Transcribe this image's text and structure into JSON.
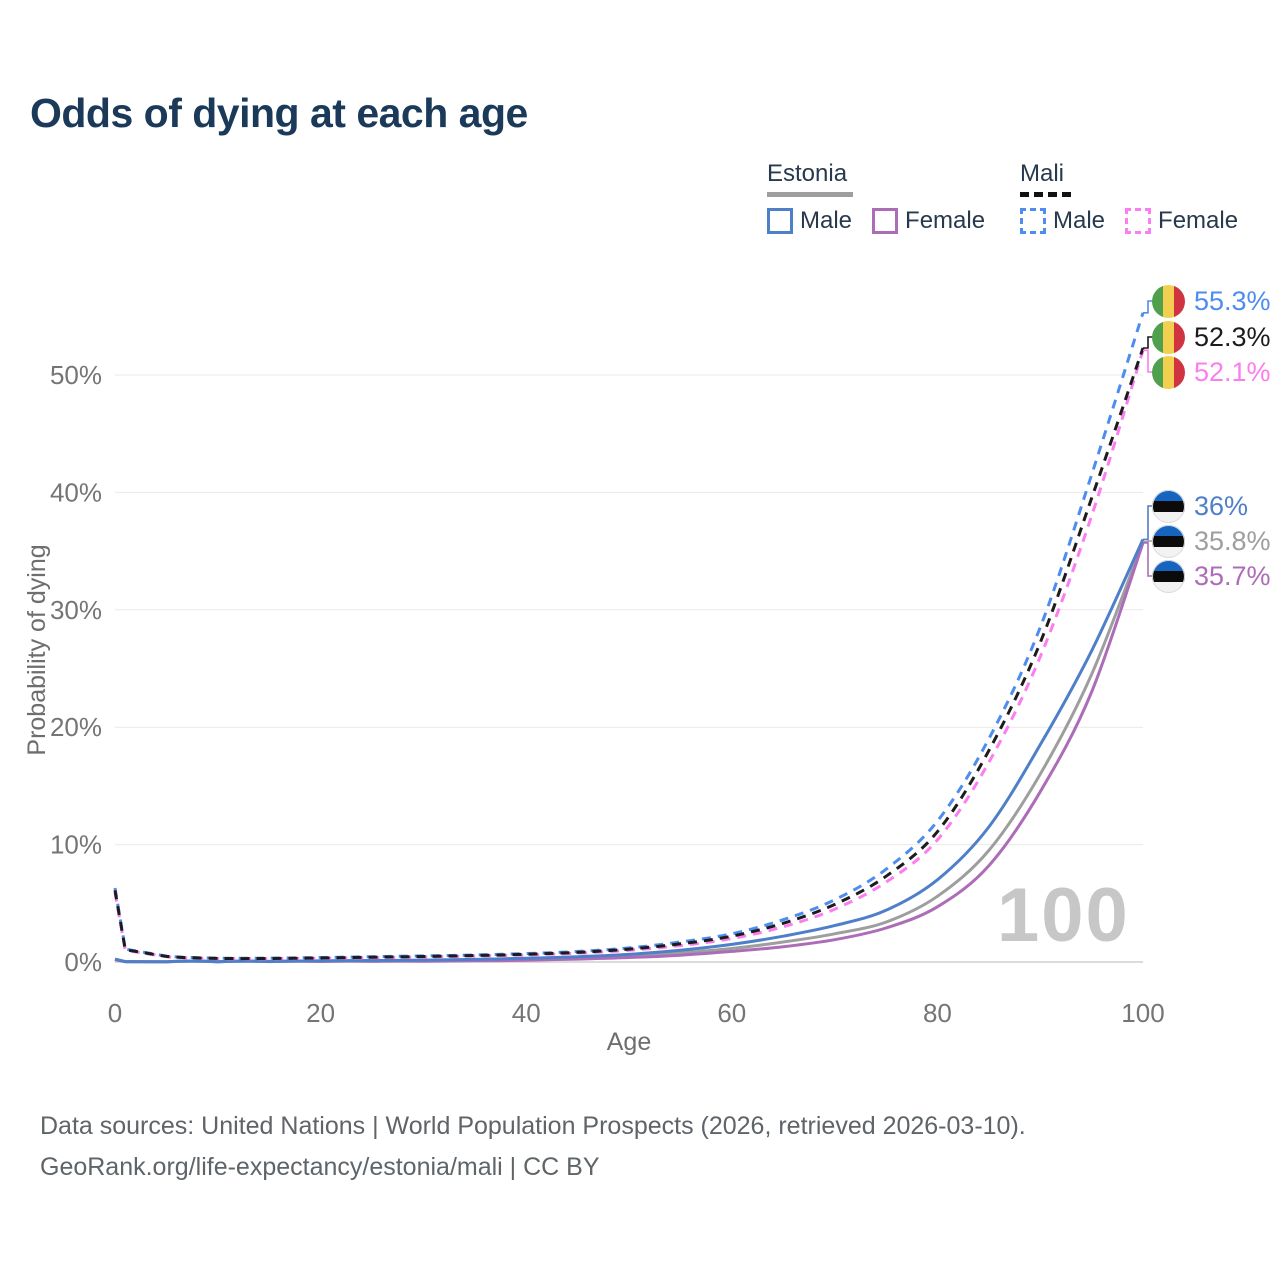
{
  "title": "Odds of dying at each age",
  "legend": {
    "groups": [
      {
        "label": "Estonia",
        "style": "solid",
        "items": [
          {
            "label": "Male"
          },
          {
            "label": "Female"
          }
        ]
      },
      {
        "label": "Mali",
        "style": "dashed",
        "items": [
          {
            "label": "Male"
          },
          {
            "label": "Female"
          }
        ]
      }
    ]
  },
  "watermark": "100",
  "footer": {
    "line1": "Data sources: United Nations | World Population Prospects (2026, retrieved 2026-03-10).",
    "line2": "GeoRank.org/life-expectancy/estonia/mali | CC BY"
  },
  "chart_data": {
    "type": "line",
    "title": "Odds of dying at each age",
    "xlabel": "Age",
    "ylabel": "Probability of dying",
    "x_ticks": [
      0,
      20,
      40,
      60,
      80,
      100
    ],
    "y_ticks": [
      "0%",
      "10%",
      "20%",
      "30%",
      "40%",
      "50%"
    ],
    "xlim": [
      0,
      100
    ],
    "ylim_percent": [
      0,
      57
    ],
    "grid": "horizontal",
    "legend_position": "top-right",
    "ages": [
      0,
      1,
      5,
      10,
      15,
      20,
      25,
      30,
      35,
      40,
      45,
      50,
      55,
      60,
      65,
      70,
      75,
      80,
      85,
      90,
      95,
      100
    ],
    "series": [
      {
        "name": "Mali Male",
        "country": "Mali",
        "sex": "Male",
        "color": "#4e8cf0",
        "dashed": true,
        "end_label": "55.3%",
        "flag": "mali-flag",
        "values": [
          6.3,
          1.1,
          0.5,
          0.33,
          0.33,
          0.38,
          0.45,
          0.52,
          0.6,
          0.72,
          0.9,
          1.2,
          1.7,
          2.4,
          3.6,
          5.3,
          7.9,
          12.0,
          19.0,
          28.5,
          41.5,
          55.3
        ]
      },
      {
        "name": "Mali Both sexes",
        "country": "Mali",
        "sex": "Both",
        "color": "#1c1c1c",
        "dashed": true,
        "end_label": "52.3%",
        "flag": "mali-flag",
        "values": [
          6.1,
          1.05,
          0.48,
          0.31,
          0.3,
          0.34,
          0.41,
          0.47,
          0.55,
          0.66,
          0.82,
          1.1,
          1.55,
          2.2,
          3.3,
          4.9,
          7.3,
          11.1,
          18.0,
          27.2,
          39.5,
          52.3
        ]
      },
      {
        "name": "Mali Female",
        "country": "Mali",
        "sex": "Female",
        "color": "#fb7df0",
        "dashed": true,
        "end_label": "52.1%",
        "flag": "mali-flag",
        "values": [
          5.9,
          1.0,
          0.45,
          0.29,
          0.28,
          0.31,
          0.37,
          0.43,
          0.5,
          0.6,
          0.75,
          1.0,
          1.4,
          2.0,
          3.0,
          4.5,
          6.8,
          10.4,
          17.0,
          26.0,
          38.0,
          52.1
        ]
      },
      {
        "name": "Estonia Male",
        "country": "Estonia",
        "sex": "Male",
        "color": "#4e7fc9",
        "dashed": false,
        "end_label": "36%",
        "flag": "estonia-flag",
        "values": [
          0.25,
          0.03,
          0.02,
          0.02,
          0.05,
          0.1,
          0.13,
          0.16,
          0.22,
          0.32,
          0.45,
          0.65,
          1.0,
          1.5,
          2.2,
          3.1,
          4.4,
          7.0,
          11.5,
          18.5,
          26.5,
          36.0
        ]
      },
      {
        "name": "Estonia Both sexes",
        "country": "Estonia",
        "sex": "Both",
        "color": "#9e9e9e",
        "dashed": false,
        "end_label": "35.8%",
        "flag": "estonia-flag",
        "values": [
          0.22,
          0.03,
          0.02,
          0.02,
          0.04,
          0.07,
          0.1,
          0.12,
          0.17,
          0.25,
          0.35,
          0.5,
          0.78,
          1.15,
          1.7,
          2.4,
          3.4,
          5.6,
          9.5,
          16.0,
          24.5,
          35.8
        ]
      },
      {
        "name": "Estonia Female",
        "country": "Estonia",
        "sex": "Female",
        "color": "#ad6cb8",
        "dashed": false,
        "end_label": "35.7%",
        "flag": "estonia-flag",
        "values": [
          0.2,
          0.02,
          0.01,
          0.02,
          0.03,
          0.04,
          0.05,
          0.07,
          0.1,
          0.15,
          0.25,
          0.38,
          0.58,
          0.9,
          1.3,
          1.9,
          2.9,
          4.7,
          8.2,
          14.5,
          23.0,
          35.7
        ]
      }
    ],
    "axis_colors": {
      "tick_label": "#757575",
      "axis_title": "#6e6e6e",
      "gridline": "#e9e9e9",
      "baseline": "#cfcfcf"
    }
  }
}
